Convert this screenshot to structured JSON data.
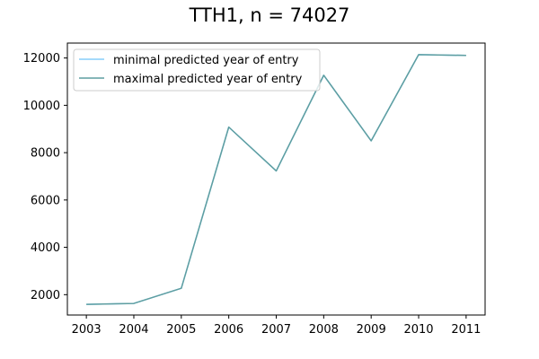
{
  "chart_data": {
    "type": "line",
    "title": "TTH1, n = 74027",
    "xlabel": "",
    "ylabel": "",
    "x": [
      2003,
      2004,
      2005,
      2006,
      2007,
      2008,
      2009,
      2010,
      2011
    ],
    "x_ticks": [
      "2003",
      "2004",
      "2005",
      "2006",
      "2007",
      "2008",
      "2009",
      "2010",
      "2011"
    ],
    "y_ticks": [
      "2000",
      "4000",
      "6000",
      "8000",
      "10000",
      "12000"
    ],
    "xlim": [
      2002.6,
      2011.4
    ],
    "ylim": [
      1140,
      12630
    ],
    "series": [
      {
        "name": "minimal predicted year of entry",
        "color": "#87cefa",
        "values": [
          1590,
          1630,
          2270,
          9080,
          7230,
          11270,
          8500,
          12140,
          12110
        ]
      },
      {
        "name": "maximal predicted year of entry",
        "color": "#5f9ea0",
        "values": [
          1590,
          1630,
          2270,
          9080,
          7230,
          11270,
          8500,
          12140,
          12110
        ]
      }
    ],
    "legend": "upper-left",
    "grid": false
  }
}
